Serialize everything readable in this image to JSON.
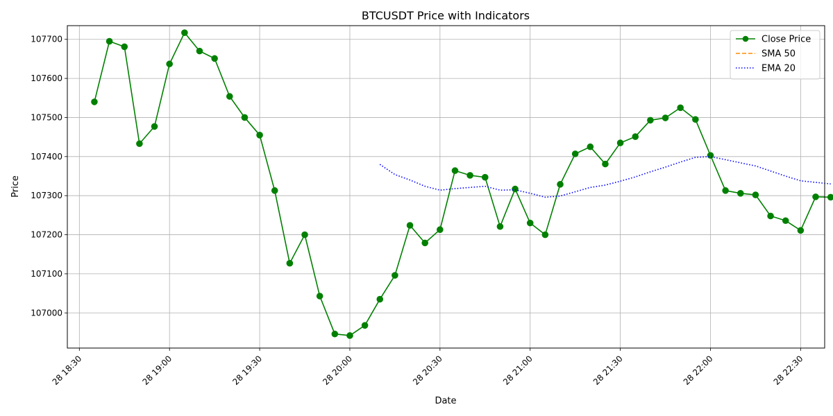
{
  "chart_data": {
    "type": "line",
    "title": "BTCUSDT Price with Indicators",
    "xlabel": "Date",
    "ylabel": "Price",
    "grid": true,
    "legend_position": "top-right",
    "x_ticks": [
      {
        "label": "28 18:30",
        "minutes": 1110
      },
      {
        "label": "28 19:00",
        "minutes": 1140
      },
      {
        "label": "28 19:30",
        "minutes": 1170
      },
      {
        "label": "28 20:00",
        "minutes": 1200
      },
      {
        "label": "28 20:30",
        "minutes": 1230
      },
      {
        "label": "28 21:00",
        "minutes": 1260
      },
      {
        "label": "28 21:30",
        "minutes": 1290
      },
      {
        "label": "28 22:00",
        "minutes": 1320
      },
      {
        "label": "28 22:30",
        "minutes": 1350
      }
    ],
    "y_ticks": [
      107000,
      107100,
      107200,
      107300,
      107400,
      107500,
      107600,
      107700
    ],
    "xlim_minutes": [
      1106,
      1358
    ],
    "ylim": [
      106910,
      107735
    ],
    "series": [
      {
        "name": "Close Price",
        "color": "#008000",
        "style": "solid-with-markers",
        "x_minutes": [
          1115,
          1120,
          1125,
          1130,
          1135,
          1140,
          1145,
          1150,
          1155,
          1160,
          1165,
          1170,
          1175,
          1180,
          1185,
          1190,
          1195,
          1200,
          1205,
          1210,
          1215,
          1220,
          1225,
          1230,
          1235,
          1240,
          1245,
          1250,
          1255,
          1260,
          1265,
          1270,
          1275,
          1280,
          1285,
          1290,
          1295,
          1300,
          1305,
          1310,
          1315,
          1320,
          1325,
          1330,
          1335,
          1340,
          1345,
          1350,
          1355,
          1360
        ],
        "values": [
          107540,
          107695,
          107681,
          107433,
          107477,
          107637,
          107717,
          107670,
          107651,
          107554,
          107500,
          107455,
          107313,
          107127,
          107200,
          107043,
          106946,
          106942,
          106968,
          107035,
          107096,
          107224,
          107179,
          107213,
          107364,
          107352,
          107347,
          107221,
          107317,
          107230,
          107200,
          107329,
          107407,
          107425,
          107381,
          107435,
          107451,
          107493,
          107499,
          107525,
          107495,
          107403,
          107313,
          107306,
          107302,
          107248,
          107236,
          107211,
          107297,
          107296
        ]
      },
      {
        "name": "SMA 50",
        "color": "#ff8c00",
        "style": "dashed",
        "x_minutes": [],
        "values": []
      },
      {
        "name": "EMA 20",
        "color": "#0000ff",
        "style": "dotted",
        "x_minutes": [
          1210,
          1215,
          1220,
          1225,
          1230,
          1235,
          1240,
          1245,
          1250,
          1255,
          1260,
          1265,
          1270,
          1275,
          1280,
          1285,
          1290,
          1295,
          1300,
          1305,
          1310,
          1315,
          1320,
          1325,
          1330,
          1335,
          1340,
          1345,
          1350,
          1355,
          1360
        ],
        "values": [
          107380,
          107354,
          107340,
          107324,
          107314,
          107318,
          107321,
          107324,
          107314,
          107315,
          107306,
          107296,
          107299,
          107310,
          107321,
          107327,
          107337,
          107348,
          107361,
          107373,
          107386,
          107398,
          107400,
          107392,
          107384,
          107376,
          107363,
          107350,
          107338,
          107334,
          107330
        ]
      }
    ]
  }
}
